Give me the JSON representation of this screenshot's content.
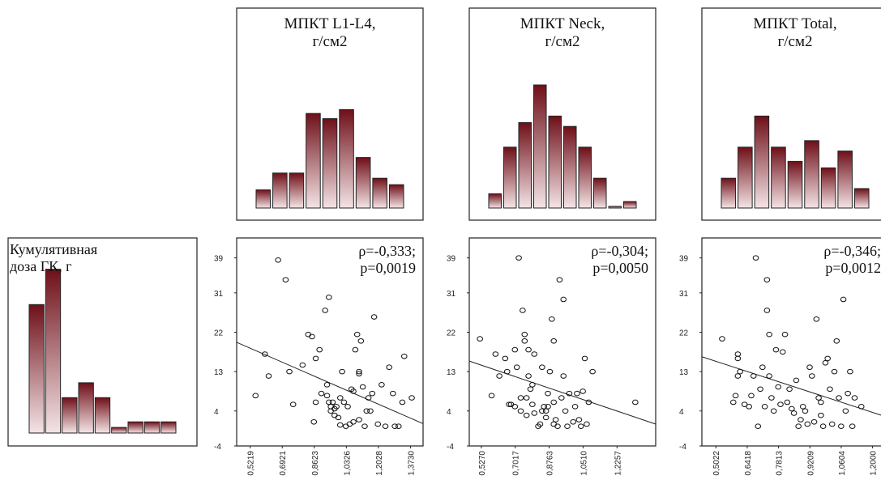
{
  "chart_data": {
    "type": "scatter-matrix",
    "row_variable": {
      "label_lines": [
        "Кумулятивная",
        "доза ГК, г"
      ],
      "histogram": [
        0.69,
        0.88,
        0.19,
        0.27,
        0.19,
        0.03,
        0.06,
        0.06,
        0.06
      ],
      "y_ticks": [
        39,
        31,
        22,
        13,
        4,
        -4
      ],
      "ylim": [
        -4,
        43
      ]
    },
    "columns": [
      {
        "title_lines": [
          "МПКТ L1-L4,",
          "г/см2"
        ],
        "histogram": [
          0.14,
          0.27,
          0.27,
          0.73,
          0.69,
          0.76,
          0.39,
          0.23,
          0.18
        ],
        "stat_lines": [
          "ρ=-0,333;",
          "p=0,0019"
        ],
        "x_ticks": [
          "0,5219",
          "0,6921",
          "0,8623",
          "1,0326",
          "1,2028",
          "1,3730"
        ],
        "x_tick_values": [
          0.5219,
          0.6921,
          0.8623,
          1.0326,
          1.2028,
          1.373
        ],
        "xlim": [
          0.45,
          1.44
        ],
        "regression": {
          "x1": 0.45,
          "y1": 19.7,
          "x2": 1.44,
          "y2": 1.1
        },
        "points": [
          [
            0.55,
            7.5
          ],
          [
            0.6,
            17
          ],
          [
            0.62,
            12
          ],
          [
            0.67,
            38.5
          ],
          [
            0.71,
            34
          ],
          [
            0.73,
            13
          ],
          [
            0.75,
            5.5
          ],
          [
            0.8,
            14.5
          ],
          [
            0.83,
            21.5
          ],
          [
            0.85,
            21
          ],
          [
            0.86,
            1.5
          ],
          [
            0.87,
            16
          ],
          [
            0.87,
            6
          ],
          [
            0.89,
            18
          ],
          [
            0.9,
            8
          ],
          [
            0.92,
            27
          ],
          [
            0.93,
            10
          ],
          [
            0.94,
            30
          ],
          [
            0.93,
            7.5
          ],
          [
            0.94,
            6
          ],
          [
            0.95,
            5
          ],
          [
            0.95,
            4
          ],
          [
            0.96,
            6
          ],
          [
            0.97,
            3
          ],
          [
            0.98,
            5
          ],
          [
            0.99,
            2.5
          ],
          [
            1.0,
            7
          ],
          [
            1.01,
            13
          ],
          [
            1.02,
            6
          ],
          [
            1.03,
            0.5
          ],
          [
            1.04,
            5
          ],
          [
            1.05,
            1
          ],
          [
            1.06,
            9
          ],
          [
            1.07,
            8.5
          ],
          [
            1.08,
            18
          ],
          [
            1.09,
            21.5
          ],
          [
            1.1,
            2
          ],
          [
            1.1,
            12.5
          ],
          [
            1.1,
            13
          ],
          [
            1.11,
            20
          ],
          [
            1.12,
            9.5
          ],
          [
            1.13,
            0.5
          ],
          [
            1.14,
            4
          ],
          [
            1.15,
            7
          ],
          [
            1.16,
            4
          ],
          [
            1.17,
            8
          ],
          [
            1.18,
            25.5
          ],
          [
            1.2,
            1
          ],
          [
            1.22,
            10
          ],
          [
            1.24,
            0.5
          ],
          [
            1.26,
            14
          ],
          [
            1.28,
            8
          ],
          [
            1.29,
            0.5
          ],
          [
            1.31,
            0.5
          ],
          [
            1.33,
            6
          ],
          [
            1.34,
            16.5
          ],
          [
            1.38,
            7
          ],
          [
            1.07,
            1.5
          ],
          [
            1.0,
            0.8
          ],
          [
            0.97,
            4.5
          ]
        ]
      },
      {
        "title_lines": [
          "МПКТ Neck,",
          "г/см2"
        ],
        "histogram": [
          0.11,
          0.47,
          0.66,
          0.95,
          0.71,
          0.63,
          0.47,
          0.23,
          0.01,
          0.05
        ],
        "stat_lines": [
          "ρ=-0,304;",
          "p=0,0050"
        ],
        "x_ticks": [
          "0,5270",
          "0,7017",
          "0,8763",
          "1,0510",
          "1,2257"
        ],
        "x_tick_values": [
          0.527,
          0.7017,
          0.8763,
          1.051,
          1.2257
        ],
        "xlim": [
          0.465,
          1.425
        ],
        "regression": {
          "x1": 0.465,
          "y1": 15.4,
          "x2": 1.425,
          "y2": 1.0
        },
        "points": [
          [
            0.52,
            20.5
          ],
          [
            0.58,
            7.5
          ],
          [
            0.6,
            17
          ],
          [
            0.62,
            12
          ],
          [
            0.65,
            16
          ],
          [
            0.66,
            13
          ],
          [
            0.67,
            5.5
          ],
          [
            0.68,
            5.5
          ],
          [
            0.7,
            5
          ],
          [
            0.7,
            18
          ],
          [
            0.71,
            14
          ],
          [
            0.72,
            39
          ],
          [
            0.73,
            7
          ],
          [
            0.73,
            4
          ],
          [
            0.74,
            27
          ],
          [
            0.75,
            21.5
          ],
          [
            0.76,
            7
          ],
          [
            0.76,
            3
          ],
          [
            0.77,
            18
          ],
          [
            0.77,
            12
          ],
          [
            0.78,
            9
          ],
          [
            0.79,
            10
          ],
          [
            0.79,
            5.5
          ],
          [
            0.8,
            17
          ],
          [
            0.8,
            3.5
          ],
          [
            0.82,
            0.5
          ],
          [
            0.83,
            1
          ],
          [
            0.84,
            4
          ],
          [
            0.84,
            14
          ],
          [
            0.85,
            5
          ],
          [
            0.86,
            4
          ],
          [
            0.87,
            8
          ],
          [
            0.87,
            5
          ],
          [
            0.88,
            13
          ],
          [
            0.89,
            25
          ],
          [
            0.9,
            20
          ],
          [
            0.9,
            1
          ],
          [
            0.91,
            2
          ],
          [
            0.92,
            0.5
          ],
          [
            0.93,
            34
          ],
          [
            0.94,
            7
          ],
          [
            0.95,
            29.5
          ],
          [
            0.96,
            4
          ],
          [
            0.97,
            0.5
          ],
          [
            0.98,
            8
          ],
          [
            1.0,
            1.5
          ],
          [
            1.01,
            5
          ],
          [
            1.02,
            8
          ],
          [
            1.03,
            2
          ],
          [
            1.04,
            0.5
          ],
          [
            1.05,
            8.5
          ],
          [
            1.06,
            16
          ],
          [
            1.07,
            1
          ],
          [
            1.08,
            6
          ],
          [
            1.1,
            13
          ],
          [
            1.32,
            6
          ],
          [
            0.86,
            2.5
          ],
          [
            0.9,
            6
          ],
          [
            0.95,
            12
          ],
          [
            0.75,
            20
          ]
        ]
      },
      {
        "title_lines": [
          "МПКТ Total,",
          "г/см2"
        ],
        "histogram": [
          0.23,
          0.47,
          0.71,
          0.47,
          0.36,
          0.52,
          0.31,
          0.44,
          0.15
        ],
        "stat_lines": [
          "ρ=-0,346;",
          "p=0,0012"
        ],
        "x_ticks": [
          "0,5022",
          "0,6418",
          "0,7813",
          "0,9209",
          "1,0604",
          "1,2000"
        ],
        "x_tick_values": [
          0.5022,
          0.6418,
          0.7813,
          0.9209,
          1.0604,
          1.2
        ],
        "xlim": [
          0.44,
          1.27
        ],
        "regression": {
          "x1": 0.44,
          "y1": 16.4,
          "x2": 1.27,
          "y2": 2.5
        },
        "points": [
          [
            0.53,
            20.5
          ],
          [
            0.58,
            6
          ],
          [
            0.59,
            7.5
          ],
          [
            0.6,
            17
          ],
          [
            0.6,
            16
          ],
          [
            0.6,
            12
          ],
          [
            0.61,
            13
          ],
          [
            0.63,
            5.5
          ],
          [
            0.65,
            5
          ],
          [
            0.66,
            7.5
          ],
          [
            0.67,
            12
          ],
          [
            0.68,
            39
          ],
          [
            0.69,
            0.5
          ],
          [
            0.7,
            9
          ],
          [
            0.71,
            14
          ],
          [
            0.72,
            5
          ],
          [
            0.73,
            34
          ],
          [
            0.73,
            27
          ],
          [
            0.74,
            21.5
          ],
          [
            0.74,
            12
          ],
          [
            0.75,
            7
          ],
          [
            0.76,
            4
          ],
          [
            0.77,
            18
          ],
          [
            0.78,
            9.5
          ],
          [
            0.79,
            5.5
          ],
          [
            0.8,
            17.5
          ],
          [
            0.81,
            21.5
          ],
          [
            0.82,
            6
          ],
          [
            0.83,
            9
          ],
          [
            0.84,
            4.5
          ],
          [
            0.85,
            3.5
          ],
          [
            0.86,
            11
          ],
          [
            0.87,
            0.5
          ],
          [
            0.88,
            2
          ],
          [
            0.89,
            5
          ],
          [
            0.9,
            4
          ],
          [
            0.91,
            1
          ],
          [
            0.92,
            14
          ],
          [
            0.93,
            12
          ],
          [
            0.95,
            25
          ],
          [
            0.96,
            7
          ],
          [
            0.97,
            3
          ],
          [
            0.98,
            0.5
          ],
          [
            0.99,
            15
          ],
          [
            1.0,
            16
          ],
          [
            1.01,
            9
          ],
          [
            1.02,
            1
          ],
          [
            1.03,
            13
          ],
          [
            1.04,
            20
          ],
          [
            1.05,
            7
          ],
          [
            1.06,
            0.5
          ],
          [
            1.07,
            29.5
          ],
          [
            1.08,
            4
          ],
          [
            1.09,
            8
          ],
          [
            1.1,
            13
          ],
          [
            1.11,
            0.5
          ],
          [
            1.15,
            5
          ],
          [
            1.12,
            7
          ],
          [
            0.94,
            1.5
          ],
          [
            0.97,
            6
          ]
        ]
      }
    ]
  }
}
